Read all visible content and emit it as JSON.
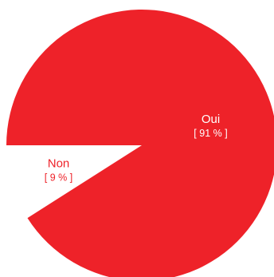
{
  "chart_data": {
    "type": "pie",
    "start_angle_deg": 180,
    "direction": "counterclockwise",
    "slices": [
      {
        "label": "Non",
        "value": 9,
        "percent_label": "[ 9 % ]",
        "color": "#ffffff",
        "text_color": "#ee2229"
      },
      {
        "label": "Oui",
        "value": 91,
        "percent_label": "[ 91 % ]",
        "color": "#ee2229",
        "text_color": "#ffffff"
      }
    ],
    "legend": "none"
  }
}
